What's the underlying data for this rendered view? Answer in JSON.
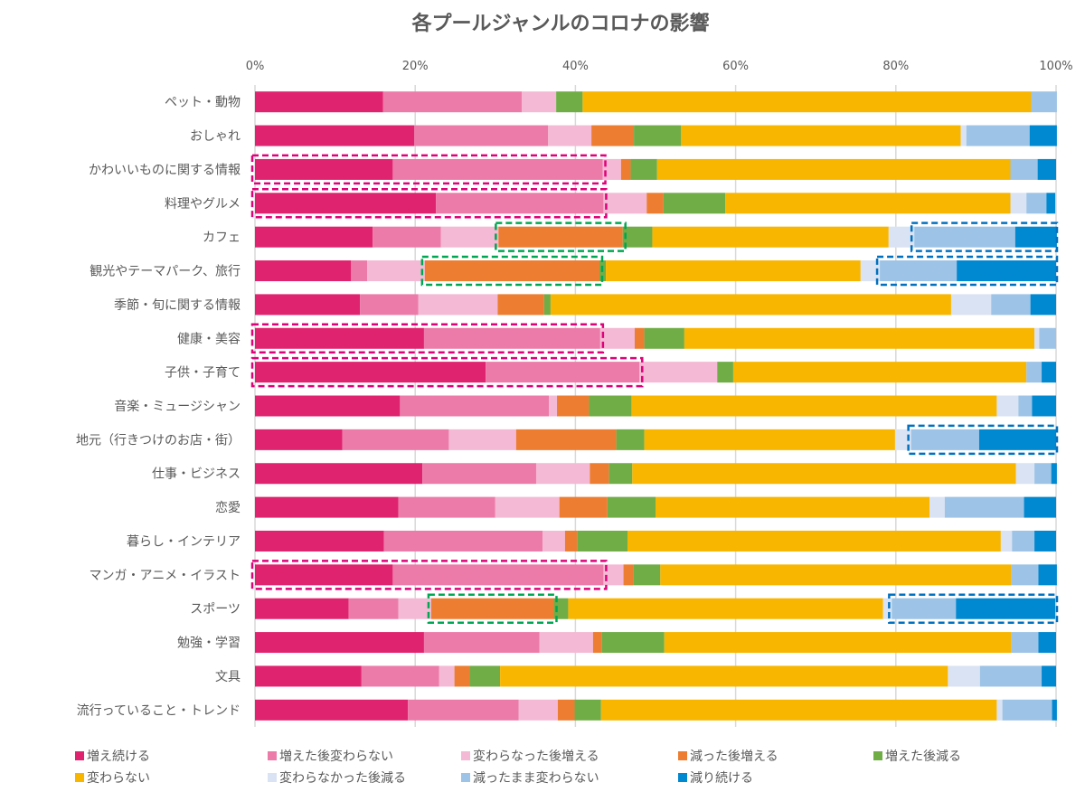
{
  "chart_data": {
    "type": "bar",
    "orientation": "horizontal",
    "stacked": "percent",
    "title": "各プールジャンルのコロナの影響",
    "xlabel": "",
    "ylabel": "",
    "xlim": [
      0,
      100
    ],
    "x_ticks": [
      "0%",
      "20%",
      "40%",
      "60%",
      "80%",
      "100%"
    ],
    "grid": true,
    "legend_position": "bottom",
    "categories": [
      "ペット・動物",
      "おしゃれ",
      "かわいいものに関する情報",
      "料理やグルメ",
      "カフェ",
      "観光やテーマパーク、旅行",
      "季節・旬に関する情報",
      "健康・美容",
      "子供・子育て",
      "音楽・ミュージシャン",
      "地元（行きつけのお店・街）",
      "仕事・ビジネス",
      "恋愛",
      "暮らし・インテリア",
      "マンガ・アニメ・イラスト",
      "スポーツ",
      "勉強・学習",
      "文具",
      "流行っていること・トレンド"
    ],
    "series": [
      {
        "name": "増え続ける",
        "color": "#E0236F",
        "values": [
          16.0,
          19.9,
          17.2,
          22.6,
          14.7,
          12.0,
          13.1,
          21.1,
          28.8,
          18.1,
          10.9,
          20.9,
          17.9,
          16.1,
          17.2,
          11.7,
          21.1,
          13.3,
          19.1
        ]
      },
      {
        "name": "増えた後変わらない",
        "color": "#EC7BAA",
        "values": [
          17.3,
          16.7,
          26.2,
          20.9,
          8.5,
          2.0,
          7.3,
          22.0,
          19.2,
          18.6,
          13.3,
          14.2,
          12.1,
          19.8,
          26.3,
          6.2,
          14.4,
          9.7,
          13.8
        ]
      },
      {
        "name": "変わらなった後増える",
        "color": "#F4B9D4",
        "values": [
          4.3,
          5.4,
          2.3,
          5.4,
          7.2,
          7.2,
          9.9,
          4.3,
          9.7,
          1.0,
          8.4,
          6.7,
          8.0,
          2.8,
          2.5,
          4.1,
          6.7,
          1.9,
          4.9
        ]
      },
      {
        "name": "減った後増える",
        "color": "#ED7D31",
        "values": [
          0,
          5.3,
          1.2,
          2.1,
          15.5,
          21.8,
          5.8,
          1.2,
          0,
          4.0,
          12.5,
          2.4,
          6.0,
          1.5,
          1.2,
          15.3,
          1.1,
          1.9,
          2.1
        ]
      },
      {
        "name": "増えた後減る",
        "color": "#70AD47",
        "values": [
          3.3,
          5.9,
          3.3,
          7.7,
          3.7,
          0.8,
          0.8,
          5.0,
          2.0,
          5.3,
          3.5,
          2.9,
          6.0,
          6.3,
          3.4,
          1.8,
          7.8,
          3.8,
          3.3
        ]
      },
      {
        "name": "変わらない",
        "color": "#F8B600",
        "values": [
          56.0,
          34.9,
          44.1,
          35.6,
          29.5,
          31.8,
          50.0,
          43.7,
          36.6,
          45.6,
          31.3,
          47.9,
          34.2,
          46.6,
          43.8,
          39.3,
          43.3,
          55.9,
          49.4
        ]
      },
      {
        "name": "変わらなかった後減る",
        "color": "#DAE3F3",
        "values": [
          0,
          0.7,
          0,
          2.0,
          3.2,
          2.4,
          5.0,
          0.6,
          0,
          2.7,
          2.0,
          2.3,
          1.9,
          1.4,
          0,
          1.1,
          0,
          4.0,
          0.7
        ]
      },
      {
        "name": "減ったまま変わらない",
        "color": "#9DC3E6",
        "values": [
          3.2,
          7.9,
          3.4,
          2.5,
          12.6,
          9.6,
          4.9,
          2.1,
          1.9,
          1.7,
          8.5,
          2.1,
          9.9,
          2.8,
          3.4,
          8.0,
          3.4,
          7.7,
          6.2
        ]
      },
      {
        "name": "減り続ける",
        "color": "#0088D1",
        "values": [
          0,
          3.4,
          2.3,
          1.1,
          5.2,
          12.4,
          3.2,
          0,
          1.8,
          3.0,
          9.6,
          0.7,
          4.0,
          2.7,
          2.3,
          12.4,
          2.2,
          1.8,
          0.6
        ]
      }
    ],
    "highlights": [
      {
        "row": 2,
        "from_series": 0,
        "to_series": 1,
        "color": "#E0007A"
      },
      {
        "row": 3,
        "from_series": 0,
        "to_series": 1,
        "color": "#E0007A"
      },
      {
        "row": 7,
        "from_series": 0,
        "to_series": 1,
        "color": "#E0007A"
      },
      {
        "row": 8,
        "from_series": 0,
        "to_series": 1,
        "color": "#E0007A"
      },
      {
        "row": 14,
        "from_series": 0,
        "to_series": 1,
        "color": "#E0007A"
      },
      {
        "row": 4,
        "from_series": 3,
        "to_series": 3,
        "color": "#00A651"
      },
      {
        "row": 5,
        "from_series": 3,
        "to_series": 3,
        "color": "#00A651"
      },
      {
        "row": 15,
        "from_series": 3,
        "to_series": 3,
        "color": "#00A651"
      },
      {
        "row": 4,
        "from_series": 7,
        "to_series": 8,
        "color": "#0070C0"
      },
      {
        "row": 5,
        "from_series": 7,
        "to_series": 8,
        "color": "#0070C0"
      },
      {
        "row": 10,
        "from_series": 7,
        "to_series": 8,
        "color": "#0070C0"
      },
      {
        "row": 15,
        "from_series": 7,
        "to_series": 8,
        "color": "#0070C0"
      }
    ]
  }
}
